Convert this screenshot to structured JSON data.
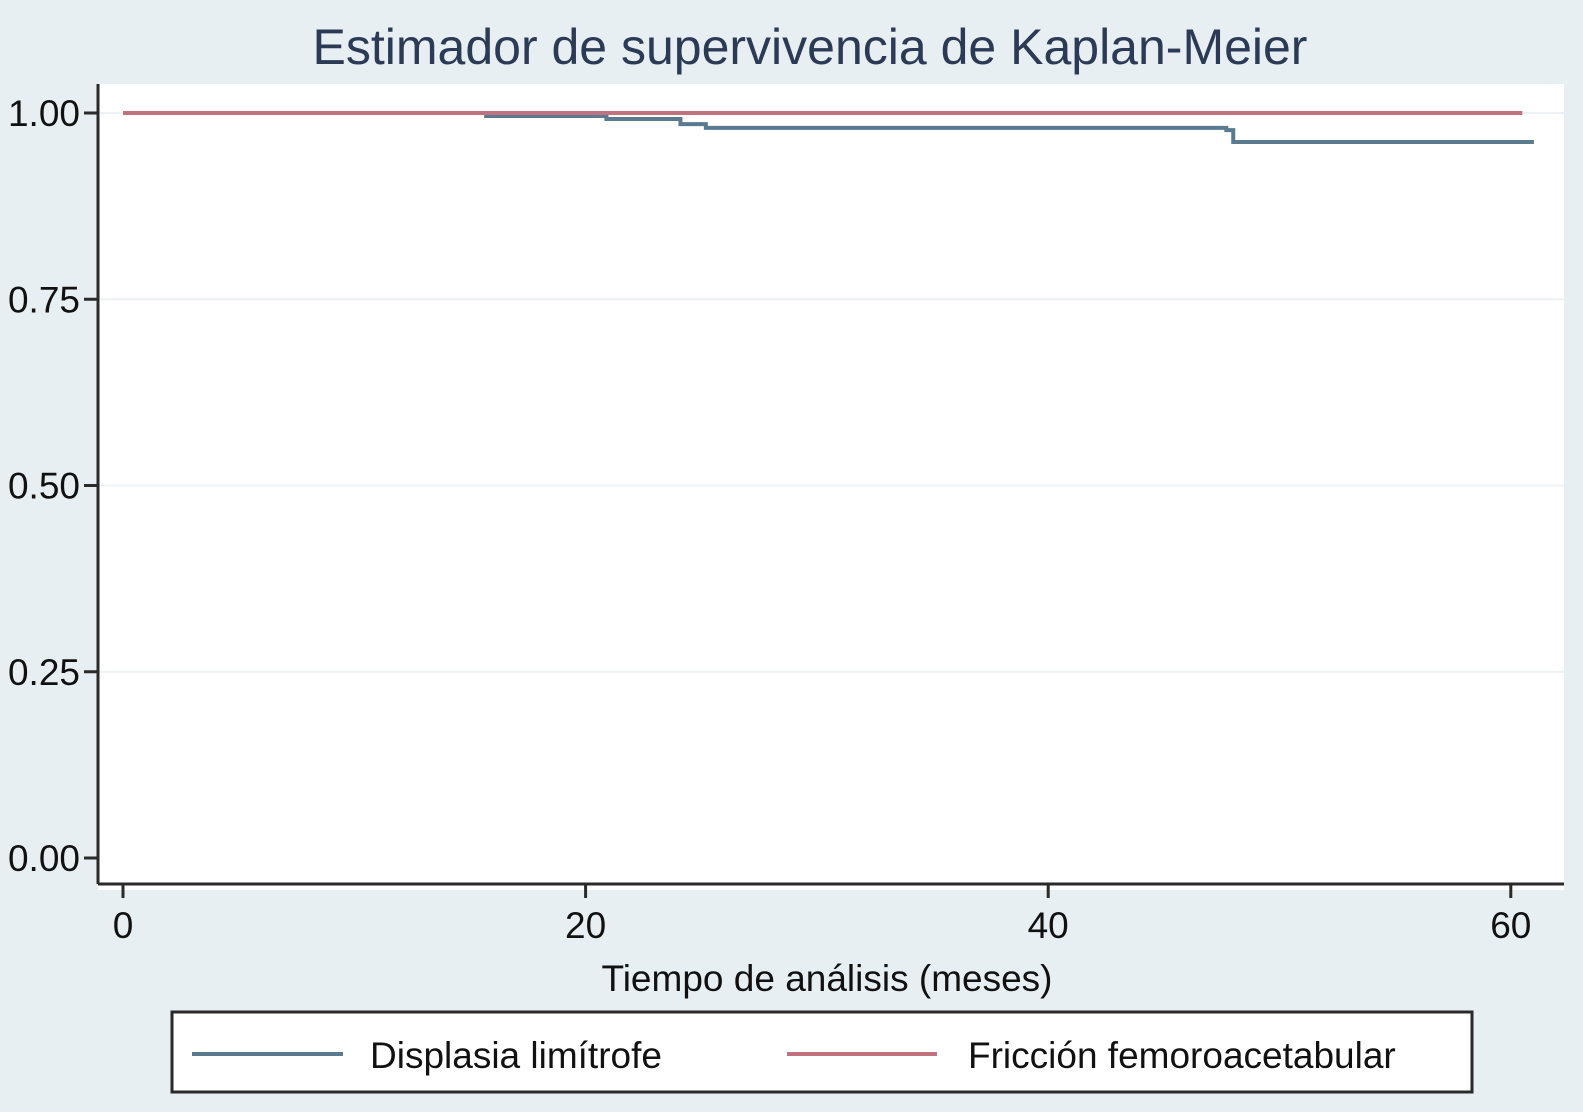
{
  "chart_data": {
    "type": "line",
    "step": true,
    "title": "Estimador de supervivencia de Kaplan-Meier",
    "xlabel": "Tiempo de análisis (meses)",
    "ylabel": "",
    "xlim": [
      0,
      61
    ],
    "ylim": [
      0,
      1
    ],
    "x_ticks": [
      0,
      20,
      40,
      60
    ],
    "x_tick_labels": [
      "0",
      "20",
      "40",
      "60"
    ],
    "y_ticks": [
      0,
      0.25,
      0.5,
      0.75,
      1
    ],
    "y_tick_labels": [
      "0.00",
      "0.25",
      "0.50",
      "0.75",
      "1.00"
    ],
    "grid": "horizontal",
    "legend_position": "bottom",
    "series": [
      {
        "name": "Displasia limítrofe",
        "color": "#5a7a90",
        "x": [
          0,
          15.7,
          20.9,
          24.1,
          25.2,
          47.7,
          48,
          61
        ],
        "y": [
          1,
          0.996,
          0.992,
          0.985,
          0.98,
          0.977,
          0.961,
          0.961
        ]
      },
      {
        "name": "Fricción femoroacetabular",
        "color": "#c0737e",
        "x": [
          0,
          60.5
        ],
        "y": [
          1,
          1
        ]
      }
    ]
  }
}
